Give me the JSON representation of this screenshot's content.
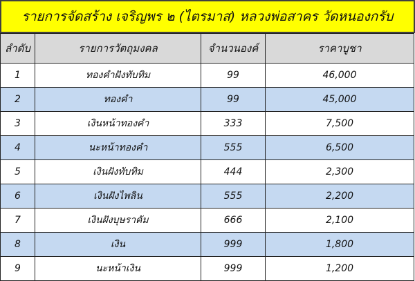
{
  "header": {
    "title": "รายการจัดสร้าง เจริญพร ๒ (ไตรมาส) หลวงพ่อสาคร วัดหนองกรับ"
  },
  "table": {
    "columns": [
      "ลำดับ",
      "รายการวัตถุมงคล",
      "จำนวนองค์",
      "ราคาบูชา"
    ],
    "rows": [
      [
        "1",
        "ทองคำฝังทับทิม",
        "99",
        "46,000"
      ],
      [
        "2",
        "ทองคำ",
        "99",
        "45,000"
      ],
      [
        "3",
        "เงินหน้าทองคำ",
        "333",
        "7,500"
      ],
      [
        "4",
        "นะหน้าทองคำ",
        "555",
        "6,500"
      ],
      [
        "5",
        "เงินฝังทับทิม",
        "444",
        "2,300"
      ],
      [
        "6",
        "เงินฝังไพลิน",
        "555",
        "2,200"
      ],
      [
        "7",
        "เงินฝังบุษราคัม",
        "666",
        "2,100"
      ],
      [
        "8",
        "เงิน",
        "999",
        "1,800"
      ],
      [
        "9",
        "นะหน้าเงิน",
        "999",
        "1,200"
      ]
    ]
  }
}
